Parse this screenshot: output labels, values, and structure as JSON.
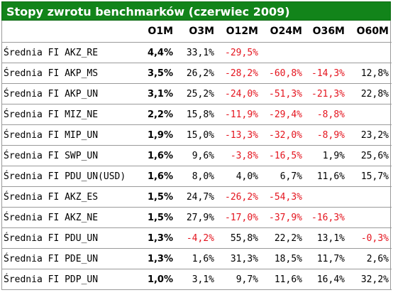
{
  "title": "Stopy zwrotu benchmarków (czerwiec 2009)",
  "columns": [
    "",
    "O1M",
    "O3M",
    "O12M",
    "O24M",
    "O36M",
    "O60M"
  ],
  "rows": [
    {
      "name": "Średnia FI AKZ_RE",
      "values": [
        "4,4%",
        "33,1%",
        "-29,5%",
        "",
        "",
        ""
      ]
    },
    {
      "name": "Średnia FI AKP_MS",
      "values": [
        "3,5%",
        "26,2%",
        "-28,2%",
        "-60,8%",
        "-14,3%",
        "12,8%"
      ]
    },
    {
      "name": "Średnia FI AKP_UN",
      "values": [
        "3,1%",
        "25,2%",
        "-24,0%",
        "-51,3%",
        "-21,3%",
        "22,8%"
      ]
    },
    {
      "name": "Średnia FI MIZ_NE",
      "values": [
        "2,2%",
        "15,8%",
        "-11,9%",
        "-29,4%",
        "-8,8%",
        ""
      ]
    },
    {
      "name": "Średnia FI MIP_UN",
      "values": [
        "1,9%",
        "15,0%",
        "-13,3%",
        "-32,0%",
        "-8,9%",
        "23,2%"
      ]
    },
    {
      "name": "Średnia FI SWP_UN",
      "values": [
        "1,6%",
        "9,6%",
        "-3,8%",
        "-16,5%",
        "1,9%",
        "25,6%"
      ]
    },
    {
      "name": "Średnia FI PDU_UN(USD)",
      "values": [
        "1,6%",
        "8,0%",
        "4,0%",
        "6,7%",
        "11,6%",
        "15,7%"
      ]
    },
    {
      "name": "Średnia FI AKZ_ES",
      "values": [
        "1,5%",
        "24,7%",
        "-26,2%",
        "-54,3%",
        "",
        ""
      ]
    },
    {
      "name": "Średnia FI AKZ_NE",
      "values": [
        "1,5%",
        "27,9%",
        "-17,0%",
        "-37,9%",
        "-16,3%",
        ""
      ]
    },
    {
      "name": "Średnia FI PDU_UN",
      "values": [
        "1,3%",
        "-4,2%",
        "55,8%",
        "22,2%",
        "13,1%",
        "-0,3%"
      ]
    },
    {
      "name": "Średnia FI PDE_UN",
      "values": [
        "1,3%",
        "1,6%",
        "31,3%",
        "18,5%",
        "11,7%",
        "2,6%"
      ]
    },
    {
      "name": "Średnia FI PDP_UN",
      "values": [
        "1,0%",
        "3,1%",
        "9,7%",
        "11,6%",
        "16,4%",
        "32,2%"
      ]
    }
  ],
  "colors": {
    "banner": "#12841a",
    "negative": "#e4141e",
    "text": "#000000"
  }
}
